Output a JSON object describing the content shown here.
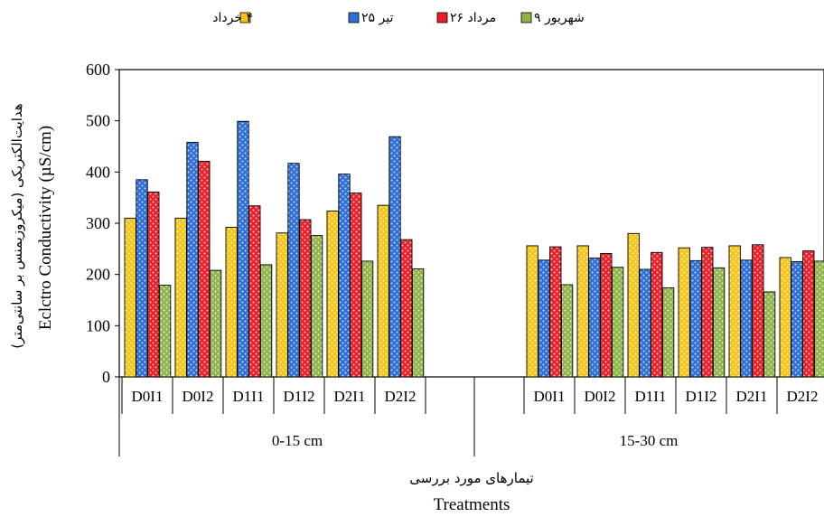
{
  "chart_data": {
    "type": "bar",
    "legend": [
      "۴ خرداد",
      "۲۵ تیر",
      "۲۶ مرداد",
      "۹ شهریور"
    ],
    "colors": [
      "#f5c518",
      "#2f6fd8",
      "#e8202a",
      "#8fb54a"
    ],
    "legend_position": "top",
    "ylabel_fa": "هدایت‌الکتریکی (میکروزیمنس بر سانتی‌متر)",
    "ylabel": "Eclctro Conductivity (µS/cm)",
    "xlabel_fa": "تیمارهای مورد بررسی",
    "xlabel": "Treatments",
    "ylim": [
      0,
      600
    ],
    "yticks": [
      "0",
      "100",
      "200",
      "300",
      "400",
      "500",
      "600"
    ],
    "groups": [
      {
        "name": "0-15 cm",
        "categories": [
          "D0I1",
          "D0I2",
          "D1I1",
          "D1I2",
          "D2I1",
          "D2I2"
        ],
        "series": [
          {
            "values": [
              310,
              310,
              292,
              281,
              324,
              335
            ]
          },
          {
            "values": [
              385,
              458,
              499,
              417,
              396,
              469
            ]
          },
          {
            "values": [
              361,
              421,
              334,
              307,
              359,
              268
            ]
          },
          {
            "values": [
              179,
              208,
              219,
              276,
              226,
              211
            ]
          }
        ]
      },
      {
        "name": "15-30 cm",
        "categories": [
          "D0I1",
          "D0I2",
          "D1I1",
          "D1I2",
          "D2I1",
          "D2I2"
        ],
        "series": [
          {
            "values": [
              256,
              256,
              280,
              252,
              256,
              233
            ]
          },
          {
            "values": [
              228,
              232,
              210,
              227,
              228,
              225
            ]
          },
          {
            "values": [
              254,
              241,
              243,
              253,
              258,
              246
            ]
          },
          {
            "values": [
              180,
              214,
              174,
              213,
              166,
              226
            ]
          }
        ]
      }
    ]
  }
}
